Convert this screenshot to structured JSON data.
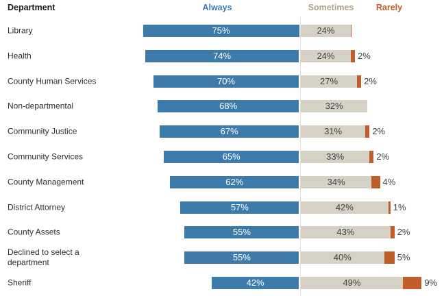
{
  "headers": {
    "department": "Department",
    "always": "Always",
    "sometimes": "Sometimes",
    "rarely": "Rarely"
  },
  "colors": {
    "always_bar": "#3d7bab",
    "sometimes_bar": "#d5d1c4",
    "rarely_bar": "#bf5e2b",
    "always_header": "#3a7ab4",
    "sometimes_header": "#aca489",
    "rarely_header": "#bd5a27",
    "axis_line": "#e2e0db",
    "always_value_text": "#ffffff",
    "sometimes_value_text": "#404040",
    "department_text": "#2e2e2e"
  },
  "chart_data": {
    "type": "bar",
    "variant": "horizontal-diverging-stacked",
    "title": "",
    "xlabel": "",
    "ylabel": "Department",
    "legend_position": "top",
    "grid": false,
    "unit": "percent",
    "axis_divider": "between Always and Sometimes segments",
    "categories": [
      "Library",
      "Health",
      "County Human Services",
      "Non-departmental",
      "Community Justice",
      "Community Services",
      "County Management",
      "District Attorney",
      "County Assets",
      "Declined to select a department",
      "Sheriff"
    ],
    "series": [
      {
        "name": "Always",
        "color": "#3d7bab",
        "values": [
          75,
          74,
          70,
          68,
          67,
          65,
          62,
          57,
          55,
          55,
          42
        ],
        "labels": [
          "75%",
          "74%",
          "70%",
          "68%",
          "67%",
          "65%",
          "62%",
          "57%",
          "55%",
          "55%",
          "42%"
        ]
      },
      {
        "name": "Sometimes",
        "color": "#d5d1c4",
        "values": [
          24,
          24,
          27,
          32,
          31,
          33,
          34,
          42,
          43,
          40,
          49
        ],
        "labels": [
          "24%",
          "24%",
          "27%",
          "32%",
          "31%",
          "33%",
          "34%",
          "42%",
          "43%",
          "40%",
          "49%"
        ]
      },
      {
        "name": "Rarely",
        "color": "#bf5e2b",
        "values": [
          0.5,
          2,
          2,
          0,
          2,
          2,
          4,
          1,
          2,
          5,
          9
        ],
        "labels": [
          "",
          "2%",
          "2%",
          "",
          "2%",
          "2%",
          "4%",
          "1%",
          "2%",
          "5%",
          "9%"
        ]
      }
    ]
  }
}
